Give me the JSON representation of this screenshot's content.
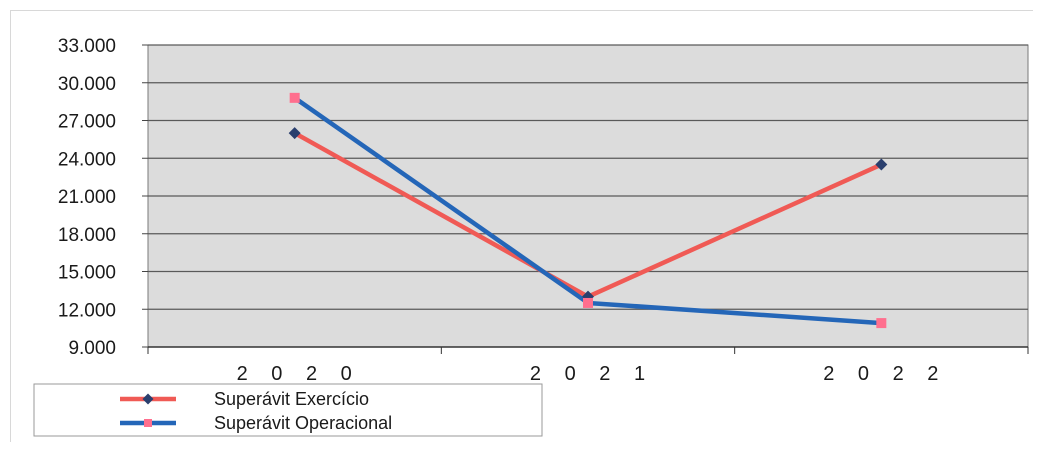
{
  "chart_data": {
    "type": "line",
    "categories": [
      "2020",
      "2021",
      "2022"
    ],
    "x_tick_labels": [
      "2 0 2 0",
      "2 0 2 1",
      "2 0 2 2"
    ],
    "ylim": [
      9000,
      33000
    ],
    "yticks": [
      9000,
      12000,
      15000,
      18000,
      21000,
      24000,
      27000,
      30000,
      33000
    ],
    "ytick_labels": [
      "9.000",
      "12.000",
      "15.000",
      "18.000",
      "21.000",
      "24.000",
      "27.000",
      "30.000",
      "33.000"
    ],
    "grid": true,
    "legend_position": "bottom-left",
    "series": [
      {
        "name": "Superávit Exercício",
        "values": [
          26000,
          13000,
          23500
        ],
        "marker": "diamond",
        "line_color": "#f05a55",
        "marker_color": "#2a3f6e"
      },
      {
        "name": "Superávit Operacional",
        "values": [
          28800,
          12500,
          10900
        ],
        "marker": "square",
        "line_color": "#2466b8",
        "marker_color": "#ff6f8e"
      }
    ],
    "plot_background": "#dcdcdc",
    "grid_color": "#5a5a5a"
  }
}
